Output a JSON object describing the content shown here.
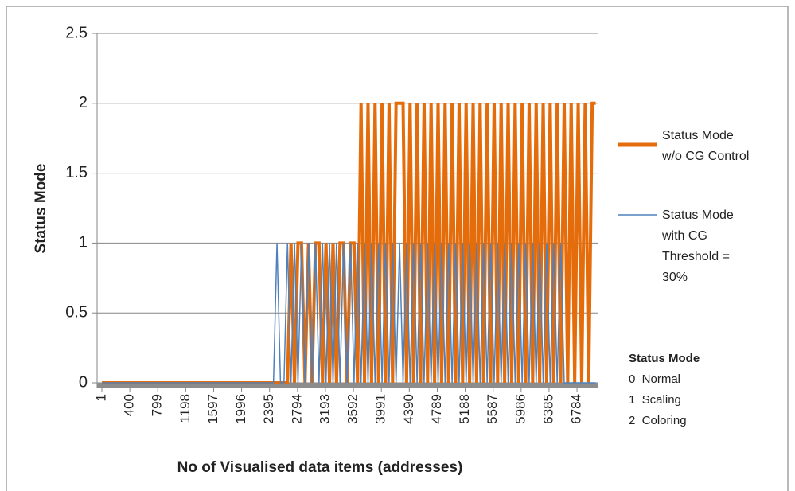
{
  "chart_data": {
    "type": "line",
    "ylabel": "Status Mode",
    "xlabel": "No of Visualised data items (addresses)",
    "xlim": [
      -67,
      7090
    ],
    "xticks": [
      1,
      400,
      799,
      1198,
      1597,
      1996,
      2395,
      2794,
      3193,
      3592,
      3991,
      4390,
      4789,
      5188,
      5587,
      5986,
      6385,
      6784
    ],
    "ylim": [
      0,
      2.5
    ],
    "yticks": [
      0,
      0.5,
      1,
      1.5,
      2,
      2.5
    ],
    "grid": true,
    "x": [
      1,
      51,
      101,
      151,
      201,
      251,
      301,
      351,
      401,
      451,
      501,
      551,
      601,
      651,
      701,
      751,
      801,
      851,
      901,
      951,
      1001,
      1051,
      1101,
      1151,
      1201,
      1251,
      1301,
      1351,
      1401,
      1451,
      1501,
      1551,
      1601,
      1651,
      1701,
      1751,
      1801,
      1851,
      1901,
      1951,
      2001,
      2051,
      2101,
      2151,
      2201,
      2251,
      2301,
      2351,
      2401,
      2451,
      2501,
      2551,
      2601,
      2651,
      2701,
      2751,
      2801,
      2851,
      2901,
      2951,
      3001,
      3051,
      3101,
      3151,
      3201,
      3251,
      3301,
      3351,
      3401,
      3451,
      3501,
      3551,
      3601,
      3651,
      3701,
      3751,
      3801,
      3851,
      3901,
      3951,
      4001,
      4051,
      4101,
      4151,
      4201,
      4251,
      4301,
      4351,
      4401,
      4451,
      4501,
      4551,
      4601,
      4651,
      4701,
      4751,
      4801,
      4851,
      4901,
      4951,
      5001,
      5051,
      5101,
      5151,
      5201,
      5251,
      5301,
      5351,
      5401,
      5451,
      5501,
      5551,
      5601,
      5651,
      5701,
      5751,
      5801,
      5851,
      5901,
      5951,
      6001,
      6051,
      6101,
      6151,
      6201,
      6251,
      6301,
      6351,
      6401,
      6451,
      6501,
      6551,
      6601,
      6651,
      6701,
      6751,
      6801,
      6851,
      6901,
      6951,
      7001,
      7051
    ],
    "series": [
      {
        "name": "Status Mode w/o CG Control",
        "color": "#e46c0a",
        "values": [
          0,
          0,
          0,
          0,
          0,
          0,
          0,
          0,
          0,
          0,
          0,
          0,
          0,
          0,
          0,
          0,
          0,
          0,
          0,
          0,
          0,
          0,
          0,
          0,
          0,
          0,
          0,
          0,
          0,
          0,
          0,
          0,
          0,
          0,
          0,
          0,
          0,
          0,
          0,
          0,
          0,
          0,
          0,
          0,
          0,
          0,
          0,
          0,
          0,
          0,
          0,
          0,
          0,
          0,
          1,
          0,
          1,
          1,
          0,
          1,
          0,
          1,
          1,
          0,
          1,
          0,
          1,
          0,
          1,
          1,
          0,
          1,
          1,
          0,
          2,
          0,
          2,
          0,
          2,
          0,
          2,
          0,
          2,
          0,
          2,
          2,
          2,
          0,
          2,
          0,
          2,
          0,
          2,
          0,
          2,
          0,
          2,
          0,
          2,
          0,
          2,
          0,
          2,
          0,
          2,
          0,
          2,
          0,
          2,
          0,
          2,
          0,
          2,
          0,
          2,
          0,
          2,
          0,
          2,
          0,
          2,
          0,
          2,
          0,
          2,
          0,
          2,
          0,
          2,
          0,
          2,
          0,
          2,
          0,
          2,
          0,
          2,
          0,
          2,
          0,
          2,
          2
        ]
      },
      {
        "name": "Status Mode with CG Threshold = 30%",
        "color": "#4f81bd",
        "values": [
          0,
          0,
          0,
          0,
          0,
          0,
          0,
          0,
          0,
          0,
          0,
          0,
          0,
          0,
          0,
          0,
          0,
          0,
          0,
          0,
          0,
          0,
          0,
          0,
          0,
          0,
          0,
          0,
          0,
          0,
          0,
          0,
          0,
          0,
          0,
          0,
          0,
          0,
          0,
          0,
          0,
          0,
          0,
          0,
          0,
          0,
          0,
          0,
          0,
          0,
          1,
          0,
          0,
          1,
          0,
          1,
          0,
          1,
          0,
          1,
          0,
          1,
          0,
          1,
          0,
          1,
          0,
          1,
          0,
          1,
          0,
          1,
          0,
          1,
          0,
          1,
          0,
          1,
          0,
          1,
          0,
          1,
          0,
          1,
          0,
          1,
          0,
          1,
          0,
          1,
          0,
          1,
          0,
          1,
          0,
          1,
          0,
          1,
          0,
          1,
          0,
          1,
          0,
          1,
          0,
          1,
          0,
          1,
          0,
          1,
          0,
          1,
          0,
          1,
          0,
          1,
          0,
          1,
          0,
          1,
          0,
          1,
          0,
          1,
          0,
          1,
          0,
          1,
          0,
          1,
          0,
          1,
          0,
          0,
          0,
          0,
          0,
          0,
          0,
          0,
          0,
          0
        ]
      }
    ],
    "annotation": {
      "title": "Status Mode",
      "items": [
        "0  Normal",
        "1  Scaling",
        "2  Coloring"
      ]
    }
  }
}
